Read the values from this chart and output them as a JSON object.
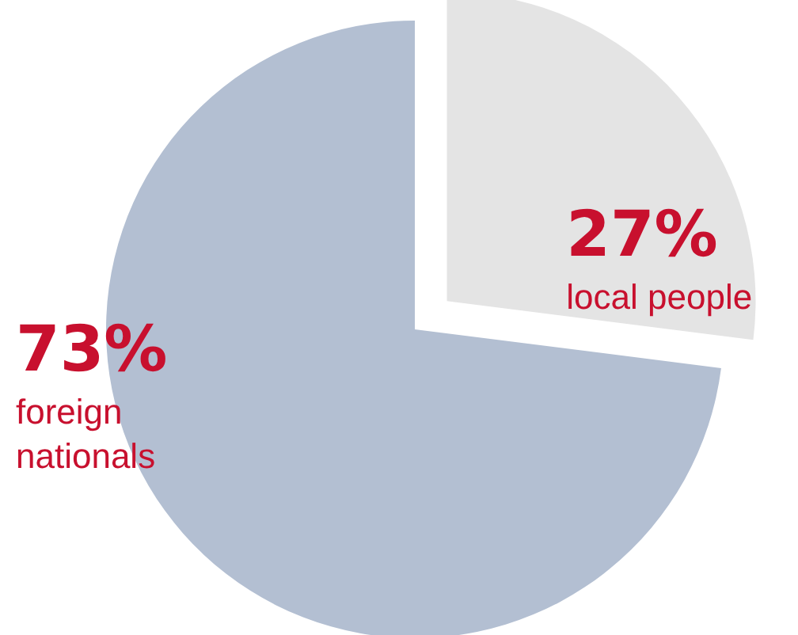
{
  "chart_data": {
    "type": "pie",
    "categories": [
      "local people",
      "foreign nationals"
    ],
    "values": [
      27,
      73
    ],
    "colors": [
      "#e4e4e4",
      "#b3bfd2"
    ],
    "value_labels": [
      "27%",
      "73%"
    ]
  }
}
